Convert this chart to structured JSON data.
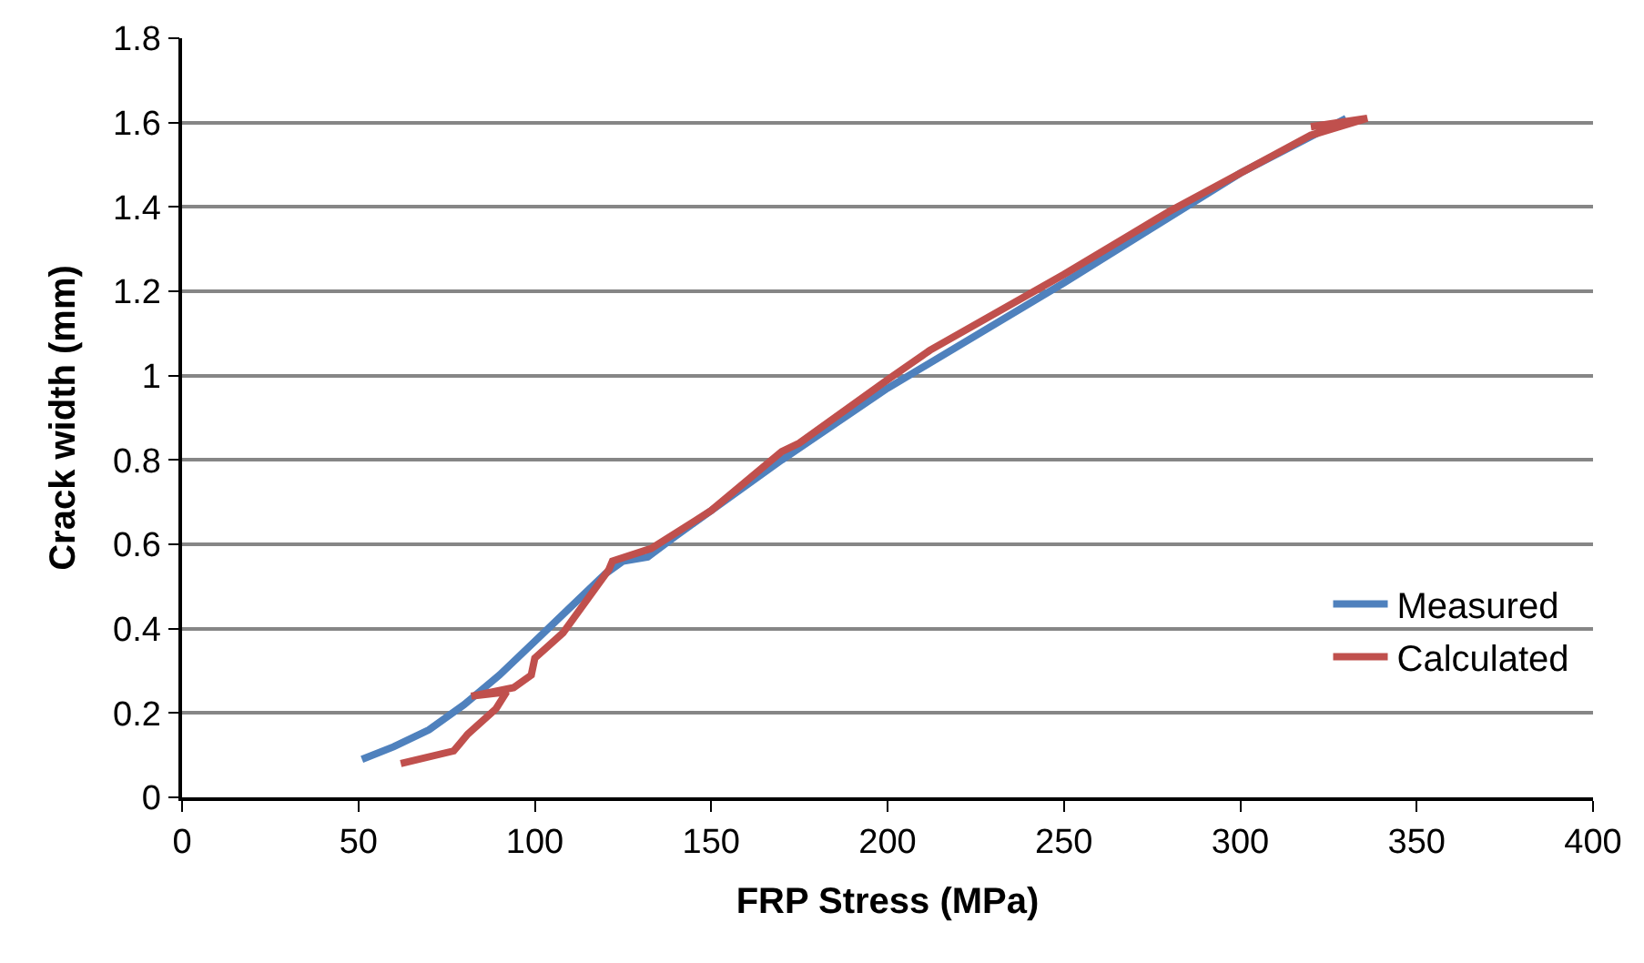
{
  "chart_data": {
    "type": "line",
    "xlabel": "FRP Stress (MPa)",
    "ylabel": "Crack width (mm)",
    "xlim": [
      0,
      400
    ],
    "xticks": [
      0,
      50,
      100,
      150,
      200,
      250,
      300,
      350,
      400
    ],
    "ylim": [
      0,
      1.8
    ],
    "yticks": [
      0,
      0.2,
      0.4,
      0.6,
      0.8,
      1,
      1.2,
      1.4,
      1.6,
      1.8
    ],
    "grid": "y",
    "legend": "right",
    "marker": "none",
    "line_style": "solid",
    "series": [
      {
        "name": "Measured",
        "color": "#4f81bd",
        "x": [
          51,
          60,
          70,
          80,
          90,
          100,
          110,
          120,
          125,
          132,
          140,
          150,
          170,
          200,
          250,
          300,
          330
        ],
        "values": [
          0.09,
          0.12,
          0.16,
          0.22,
          0.29,
          0.37,
          0.45,
          0.53,
          0.56,
          0.57,
          0.62,
          0.68,
          0.8,
          0.97,
          1.22,
          1.48,
          1.61
        ]
      },
      {
        "name": "Calculated",
        "color": "#c0504d",
        "x": [
          62,
          77,
          81,
          89,
          92,
          82,
          94,
          99,
          100,
          108,
          121,
          122,
          133,
          150,
          170,
          175,
          200,
          212,
          250,
          280,
          300,
          320,
          336,
          320
        ],
        "values": [
          0.08,
          0.11,
          0.15,
          0.21,
          0.25,
          0.24,
          0.26,
          0.29,
          0.33,
          0.39,
          0.54,
          0.56,
          0.59,
          0.68,
          0.82,
          0.84,
          0.99,
          1.06,
          1.24,
          1.39,
          1.48,
          1.57,
          1.61,
          1.59
        ]
      }
    ]
  }
}
